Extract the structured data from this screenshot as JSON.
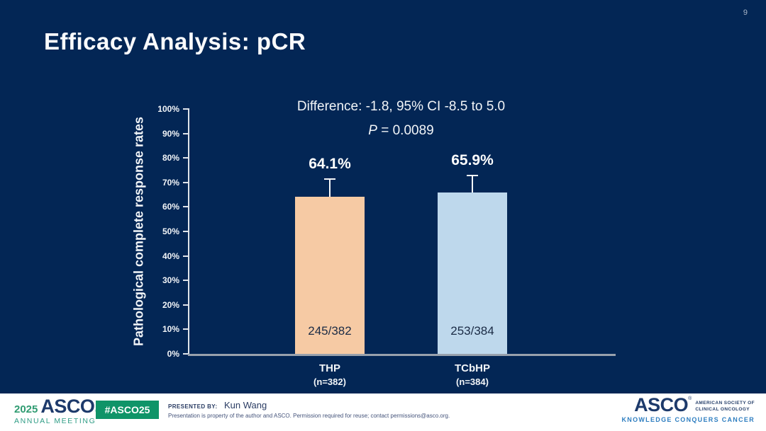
{
  "page_number": "9",
  "title": "Efficacy Analysis: pCR",
  "chart_data": {
    "type": "bar",
    "ylabel": "Pathological complete response rates",
    "ylim": [
      0,
      100
    ],
    "grid": false,
    "yticks": [
      "0%",
      "10%",
      "20%",
      "30%",
      "40%",
      "50%",
      "60%",
      "70%",
      "80%",
      "90%",
      "100%"
    ],
    "annotation": {
      "difference": "Difference: -1.8, 95% CI -8.5 to 5.0",
      "p_label": "P",
      "p_rest": " = 0.0089"
    },
    "categories": [
      "THP",
      "TCbHP"
    ],
    "bars": [
      {
        "category": "THP",
        "category_sub": "(n=382)",
        "value": 64.1,
        "value_label": "64.1%",
        "count_label": "245/382",
        "ci_low": 57.8,
        "ci_high": 71.7,
        "color": "#f6caa4"
      },
      {
        "category": "TCbHP",
        "category_sub": "(n=384)",
        "value": 65.9,
        "value_label": "65.9%",
        "count_label": "253/384",
        "ci_low": 59.0,
        "ci_high": 73.1,
        "color": "#bed8ec"
      }
    ]
  },
  "footer": {
    "meeting_logo": {
      "year": "2025",
      "org": "ASCO",
      "reg": "®",
      "event": "ANNUAL MEETING"
    },
    "hashtag": "#ASCO25",
    "presented_by_label": "PRESENTED BY:",
    "presenter": "Kun Wang",
    "disclaimer": "Presentation is property of the author and ASCO. Permission required for reuse; contact permissions@asco.org.",
    "asco_logo": {
      "org": "ASCO",
      "reg": "®",
      "line1": "AMERICAN SOCIETY OF",
      "line2": "CLINICAL ONCOLOGY",
      "tagline": "KNOWLEDGE CONQUERS CANCER"
    }
  },
  "colors": {
    "background": "#032655",
    "bar_thp": "#f6caa4",
    "bar_tcbhp": "#bed8ec",
    "badge_green": "#0f9468",
    "logo_navy": "#1d3a6b",
    "logo_teal": "#2e9c85",
    "tagline_blue": "#2e7ec0"
  }
}
